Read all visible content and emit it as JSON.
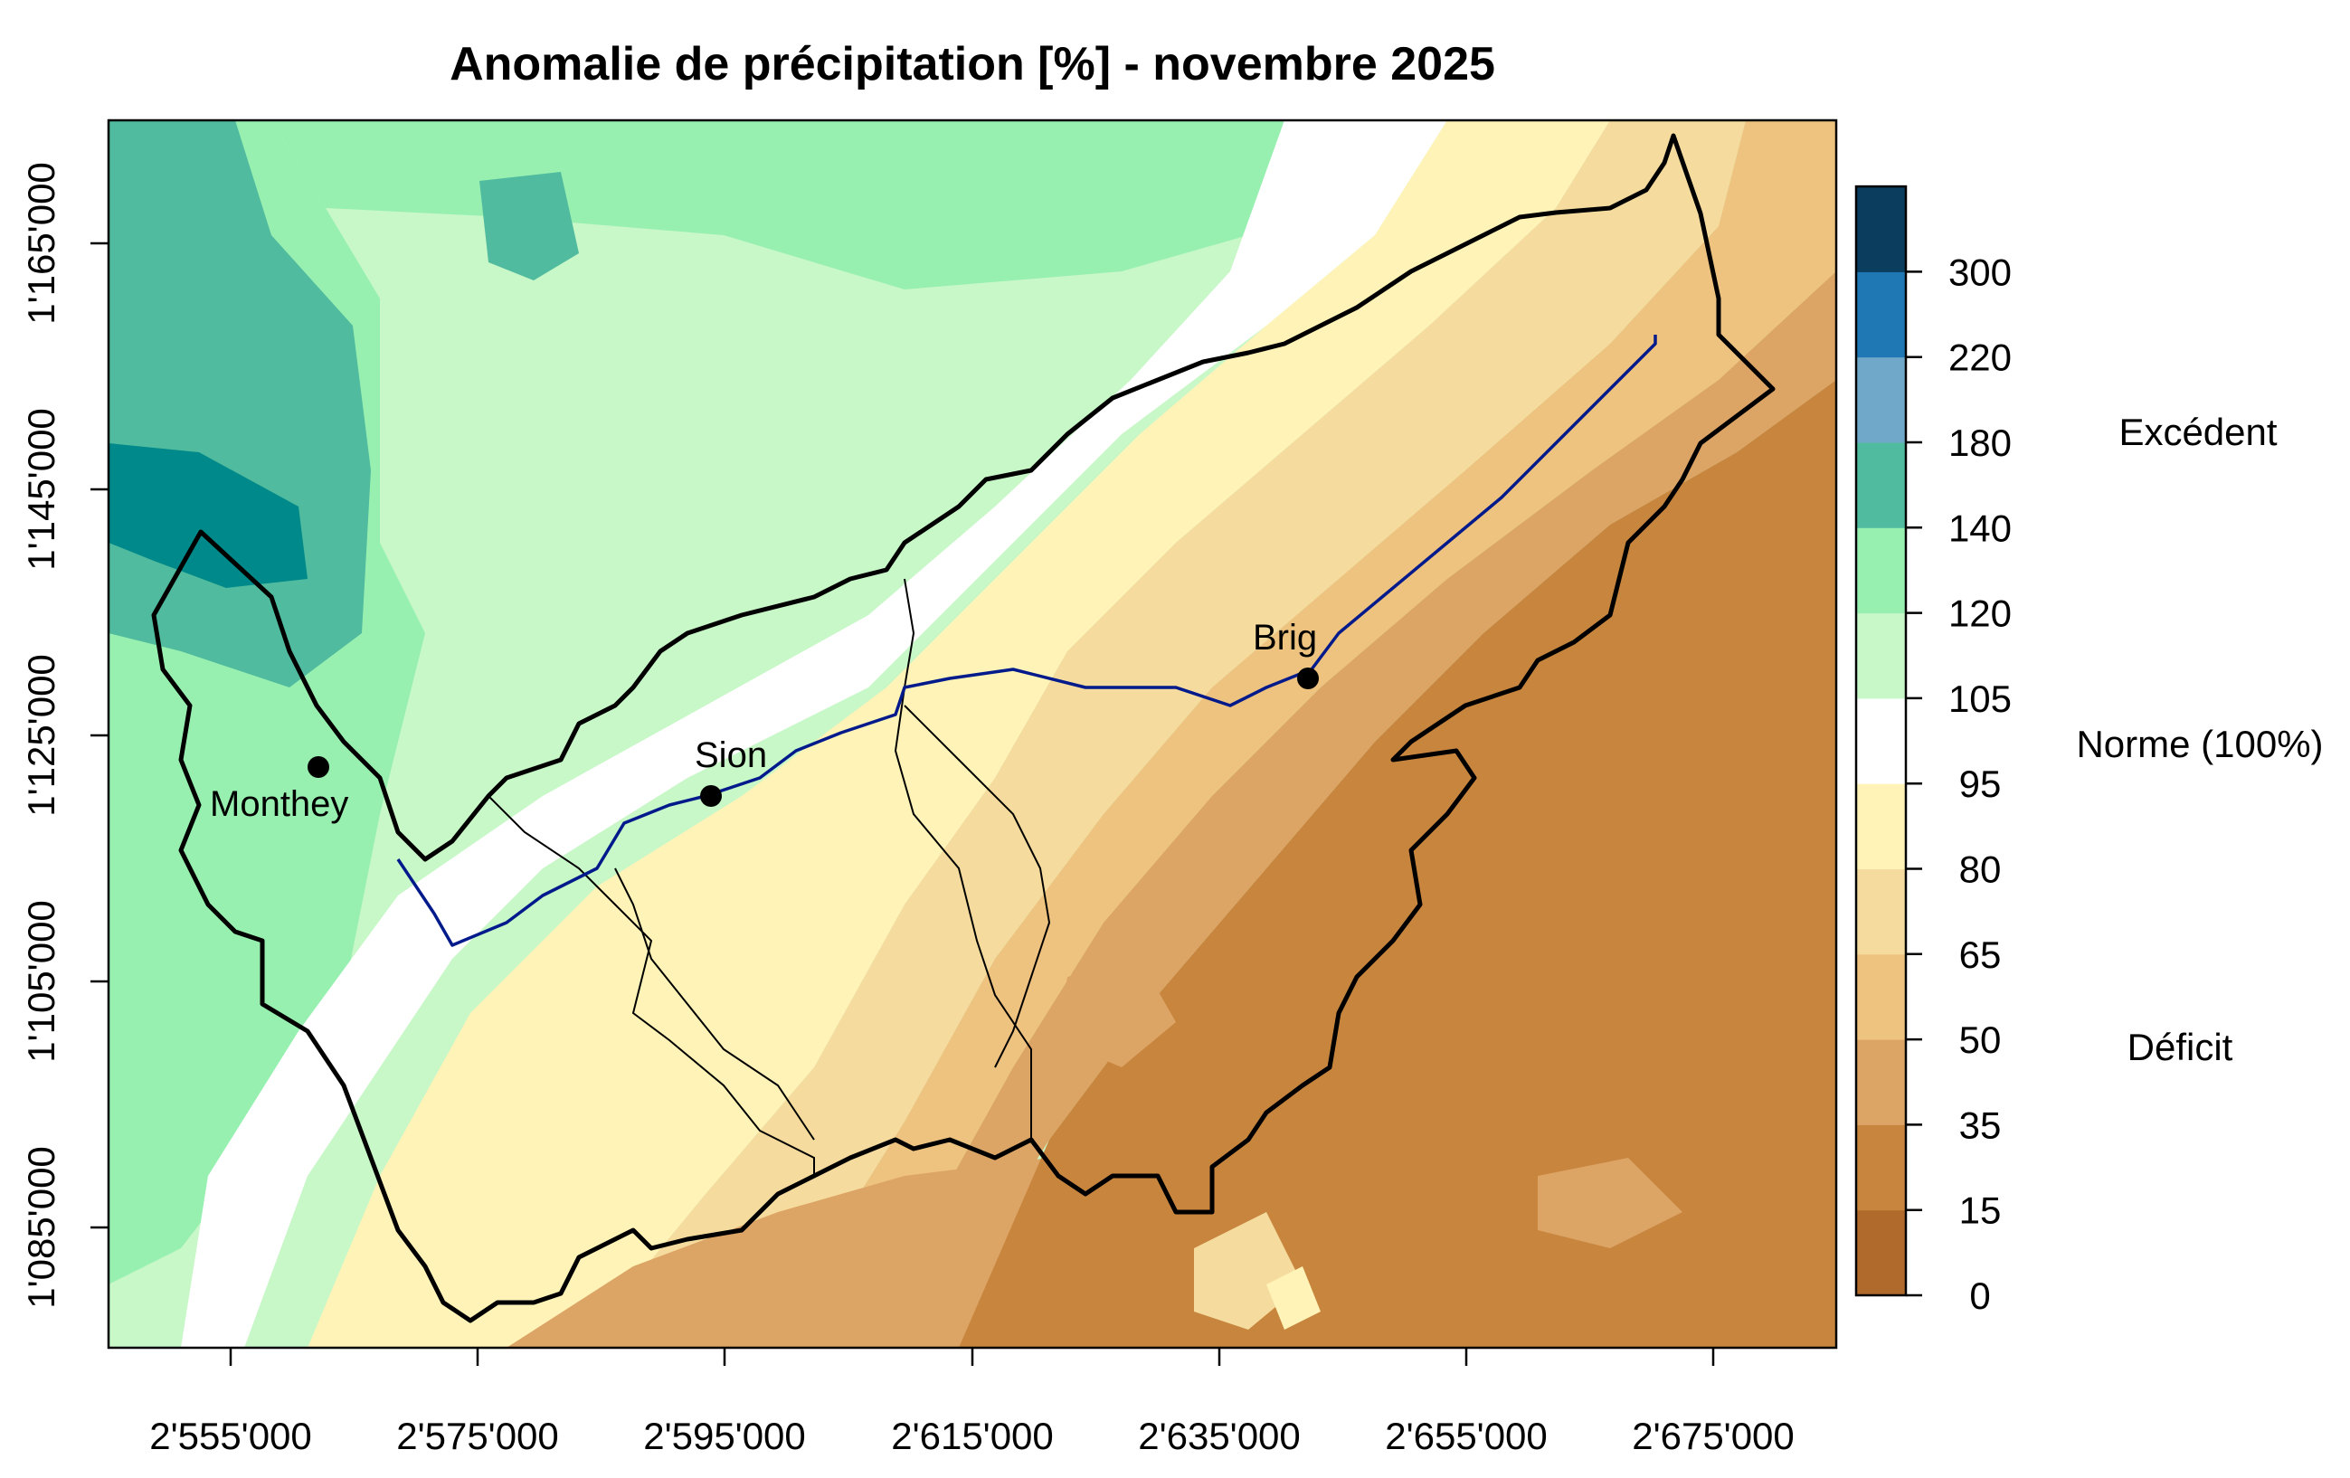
{
  "title": "Anomalie de précipitation [%] - novembre 2025",
  "x_ticks": [
    "2'555'000",
    "2'575'000",
    "2'595'000",
    "2'615'000",
    "2'635'000",
    "2'655'000",
    "2'675'000"
  ],
  "y_ticks": [
    "1'085'000",
    "1'105'000",
    "1'125'000",
    "1'145'000",
    "1'165'000"
  ],
  "cities": [
    {
      "name": "Monthey"
    },
    {
      "name": "Sion"
    },
    {
      "name": "Brig"
    }
  ],
  "legend": {
    "breaks": [
      "0",
      "15",
      "35",
      "50",
      "65",
      "80",
      "95",
      "105",
      "120",
      "140",
      "180",
      "220",
      "300"
    ],
    "colors": [
      "#b06b2c",
      "#c8853e",
      "#dca465",
      "#eec27f",
      "#f5dc9e",
      "#fff3b8",
      "#ffffff",
      "#c8f7c8",
      "#98f0b0",
      "#50bb9e",
      "#6fa8c8",
      "#1f78b4",
      "#0b3d5e"
    ],
    "categories": {
      "excess": "Excédent",
      "norm": "Norme (100%)",
      "deficit": "Déficit"
    }
  }
}
